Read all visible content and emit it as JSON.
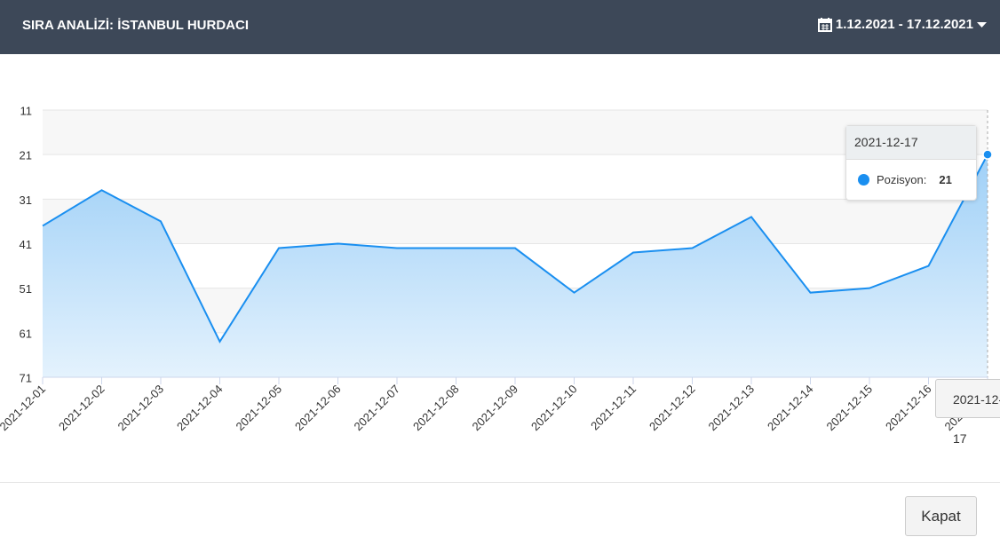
{
  "header": {
    "title": "SIRA ANALİZİ: İSTANBUL HURDACI",
    "date_range": "1.12.2021 - 17.12.2021"
  },
  "chart_data": {
    "type": "area",
    "categories": [
      "2021-12-01",
      "2021-12-02",
      "2021-12-03",
      "2021-12-04",
      "2021-12-05",
      "2021-12-06",
      "2021-12-07",
      "2021-12-08",
      "2021-12-09",
      "2021-12-10",
      "2021-12-11",
      "2021-12-12",
      "2021-12-13",
      "2021-12-14",
      "2021-12-15",
      "2021-12-16",
      "2021-12-17"
    ],
    "series": [
      {
        "color": "#1a8ff0",
        "values": [
          37,
          29,
          36,
          63,
          42,
          41,
          42,
          42,
          42,
          52,
          43,
          42,
          35,
          52,
          51,
          46,
          21
        ]
      }
    ],
    "ylim": [
      11,
      71
    ],
    "yticks": [
      11,
      21,
      31,
      41,
      51,
      61,
      71
    ],
    "y_reversed": true,
    "grid": true,
    "tooltip_label": "Pozisyon:"
  },
  "footer": {
    "close_button": "Kapat"
  }
}
